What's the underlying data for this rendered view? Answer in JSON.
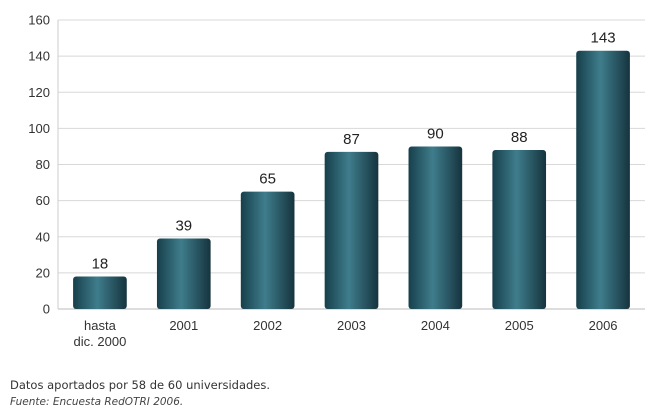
{
  "chart_data": {
    "type": "bar",
    "categories": [
      "hasta\ndic. 2000",
      "2001",
      "2002",
      "2003",
      "2004",
      "2005",
      "2006"
    ],
    "values": [
      18,
      39,
      65,
      87,
      90,
      88,
      143
    ],
    "ylim": [
      0,
      160
    ],
    "yticks": [
      0,
      20,
      40,
      60,
      80,
      100,
      120,
      140,
      160
    ],
    "grid": true,
    "bar_color": "#1e5260",
    "bar_highlight": "#3f7d8c",
    "grid_color": "#d8d8d8"
  },
  "caption": {
    "note": "Datos aportados por 58 de 60 universidades.",
    "source": "Fuente: Encuesta RedOTRI 2006."
  }
}
